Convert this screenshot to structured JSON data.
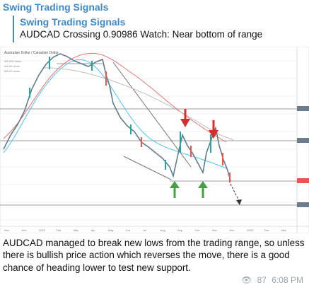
{
  "channel_title": "Swing Trading Signals",
  "reply": {
    "name": "Swing Trading Signals",
    "text": "AUDCAD Crossing 0.90986 Watch: Near bottom of range"
  },
  "chart": {
    "title": "Australian Dollar / Canadian Dollar",
    "indicators": [
      "MA 200 close",
      "MA 50 close",
      "MA 20 close"
    ],
    "x_labels": [
      "Nov",
      "Dec",
      "2021",
      "Feb",
      "Mar",
      "Apr",
      "May",
      "Jun",
      "Jul",
      "Aug",
      "Sep",
      "Oct",
      "Nov",
      "Dec",
      "2022",
      "Feb",
      "Mar"
    ]
  },
  "message": "AUDCAD managed to break new lows from the trading range, so unless there is bullish price action which reverses the move, there is a good chance of heading lower to test new support.",
  "meta": {
    "views": "87",
    "time": "6:08 PM"
  },
  "colors": {
    "accent": "#3f89c8",
    "candle_up": "#26a69a",
    "candle_down": "#ef5350",
    "arrow_down": "#d32f2f",
    "arrow_up": "#43a047"
  }
}
